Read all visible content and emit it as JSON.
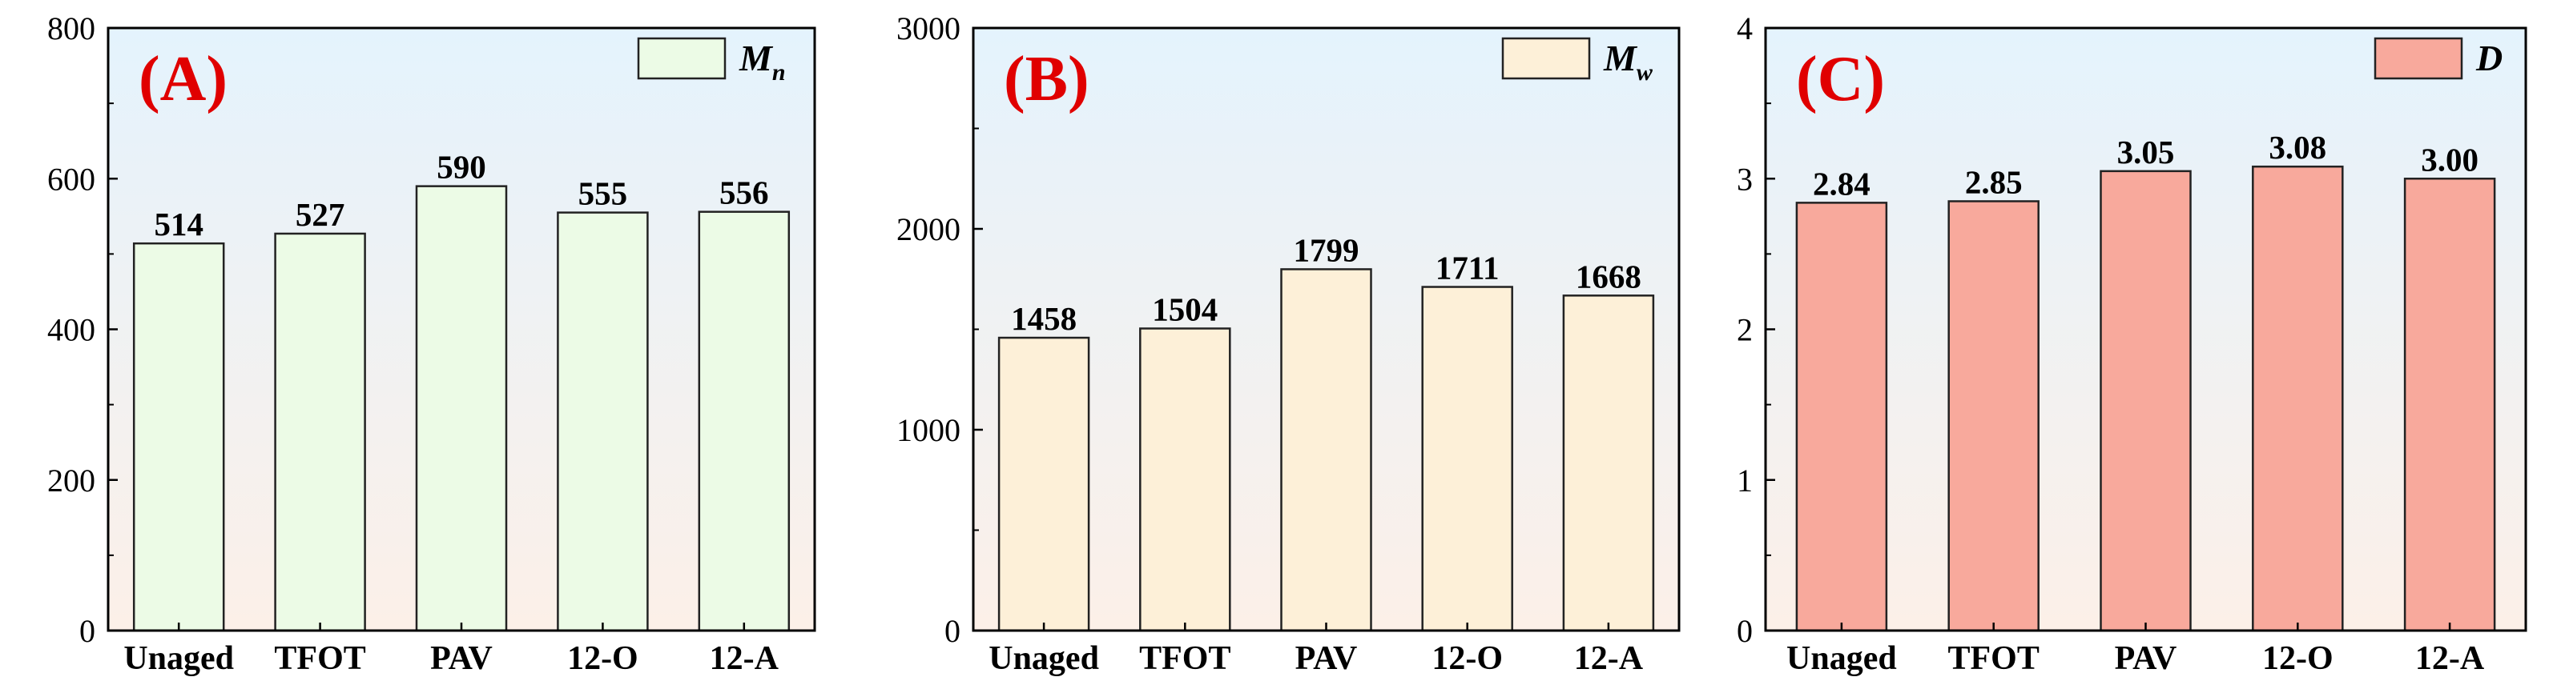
{
  "chart_data": [
    {
      "type": "bar",
      "panel_label": "(A)",
      "legend": {
        "base": "M",
        "sub": "n"
      },
      "bar_color": "#ecfbe6",
      "categories": [
        "Unaged",
        "TFOT",
        "PAV",
        "12-O",
        "12-A"
      ],
      "values": [
        514,
        527,
        590,
        555,
        556
      ],
      "value_labels": [
        "514",
        "527",
        "590",
        "555",
        "556"
      ],
      "yticks": [
        "0",
        "200",
        "400",
        "600",
        "800"
      ],
      "ylim": [
        0,
        800
      ],
      "legend_position": "top-right",
      "grid": false
    },
    {
      "type": "bar",
      "panel_label": "(B)",
      "legend": {
        "base": "M",
        "sub": "w"
      },
      "bar_color": "#fdf0d8",
      "categories": [
        "Unaged",
        "TFOT",
        "PAV",
        "12-O",
        "12-A"
      ],
      "values": [
        1458,
        1504,
        1799,
        1711,
        1668
      ],
      "value_labels": [
        "1458",
        "1504",
        "1799",
        "1711",
        "1668"
      ],
      "yticks": [
        "0",
        "1000",
        "2000",
        "3000"
      ],
      "ylim": [
        0,
        3000
      ],
      "legend_position": "top-right",
      "grid": false
    },
    {
      "type": "bar",
      "panel_label": "(C)",
      "legend": {
        "base": "D",
        "sub": ""
      },
      "bar_color": "#f8a99c",
      "categories": [
        "Unaged",
        "TFOT",
        "PAV",
        "12-O",
        "12-A"
      ],
      "values": [
        2.84,
        2.85,
        3.05,
        3.08,
        3.0
      ],
      "value_labels": [
        "2.84",
        "2.85",
        "3.05",
        "3.08",
        "3.00"
      ],
      "yticks": [
        "0",
        "1",
        "2",
        "3",
        "4"
      ],
      "ylim": [
        0,
        4
      ],
      "legend_position": "top-right",
      "grid": false
    }
  ],
  "colors": {
    "background_top": "#e4f3fd",
    "background_bottom": "#fcf0e8",
    "panel_label": "#e00000",
    "axis": "#000000"
  }
}
